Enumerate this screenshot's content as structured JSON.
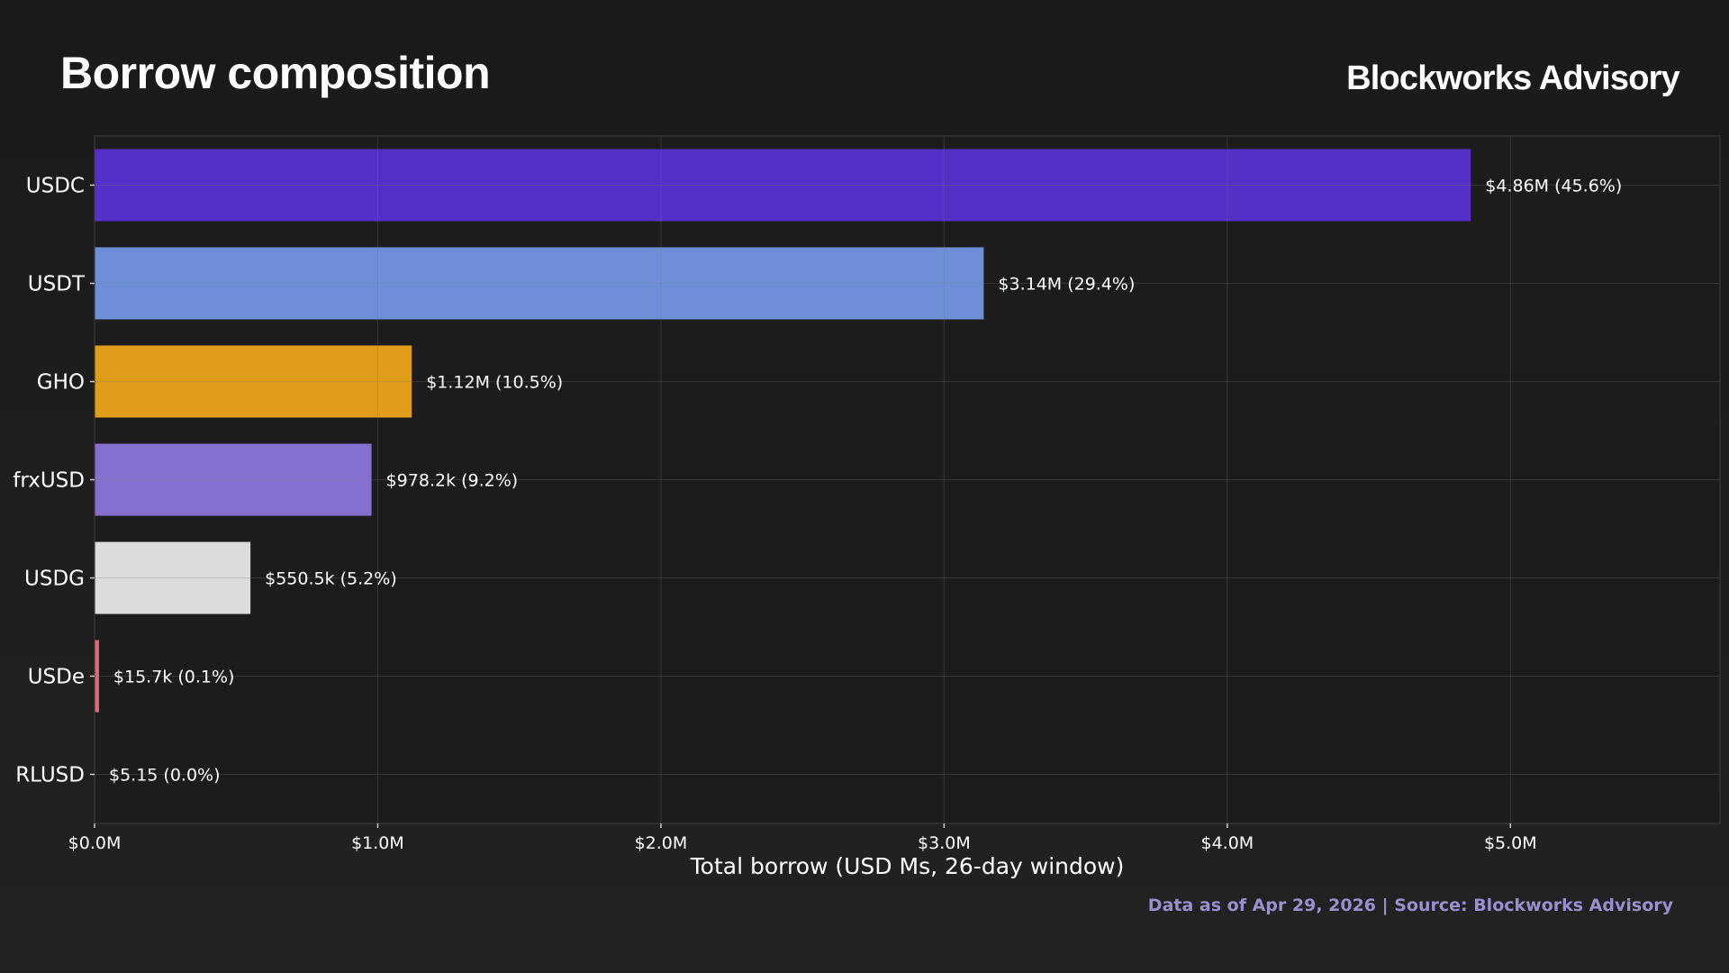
{
  "header": {
    "title": "Borrow composition",
    "brand": "Blockworks Advisory"
  },
  "footer": {
    "note": "Data as of Apr 29, 2026 | Source: Blockworks Advisory"
  },
  "chart_data": {
    "type": "bar",
    "orientation": "horizontal",
    "title": "Borrow composition",
    "xlabel": "Total borrow (USD Ms, 26-day window)",
    "ylabel": "",
    "xlim": [
      0,
      5.74
    ],
    "grid": true,
    "x_ticks": [
      0,
      1,
      2,
      3,
      4,
      5
    ],
    "x_tick_labels": [
      "$0.0M",
      "$1.0M",
      "$2.0M",
      "$3.0M",
      "$4.0M",
      "$5.0M"
    ],
    "categories": [
      "USDC",
      "USDT",
      "GHO",
      "frxUSD",
      "USDG",
      "USDe",
      "RLUSD"
    ],
    "values": [
      4.86,
      3.14,
      1.12,
      0.9782,
      0.5505,
      0.0157,
      5.15e-06
    ],
    "data_labels": [
      "$4.86M  (45.6%)",
      "$3.14M  (29.4%)",
      "$1.12M  (10.5%)",
      "$978.2k  (9.2%)",
      "$550.5k  (5.2%)",
      "$15.7k  (0.1%)",
      "$5.15  (0.0%)"
    ],
    "colors": [
      "#5530c8",
      "#6c8fd8",
      "#e09d1a",
      "#8570d0",
      "#dcdcdc",
      "#e06878",
      "#6fc7b0"
    ]
  }
}
